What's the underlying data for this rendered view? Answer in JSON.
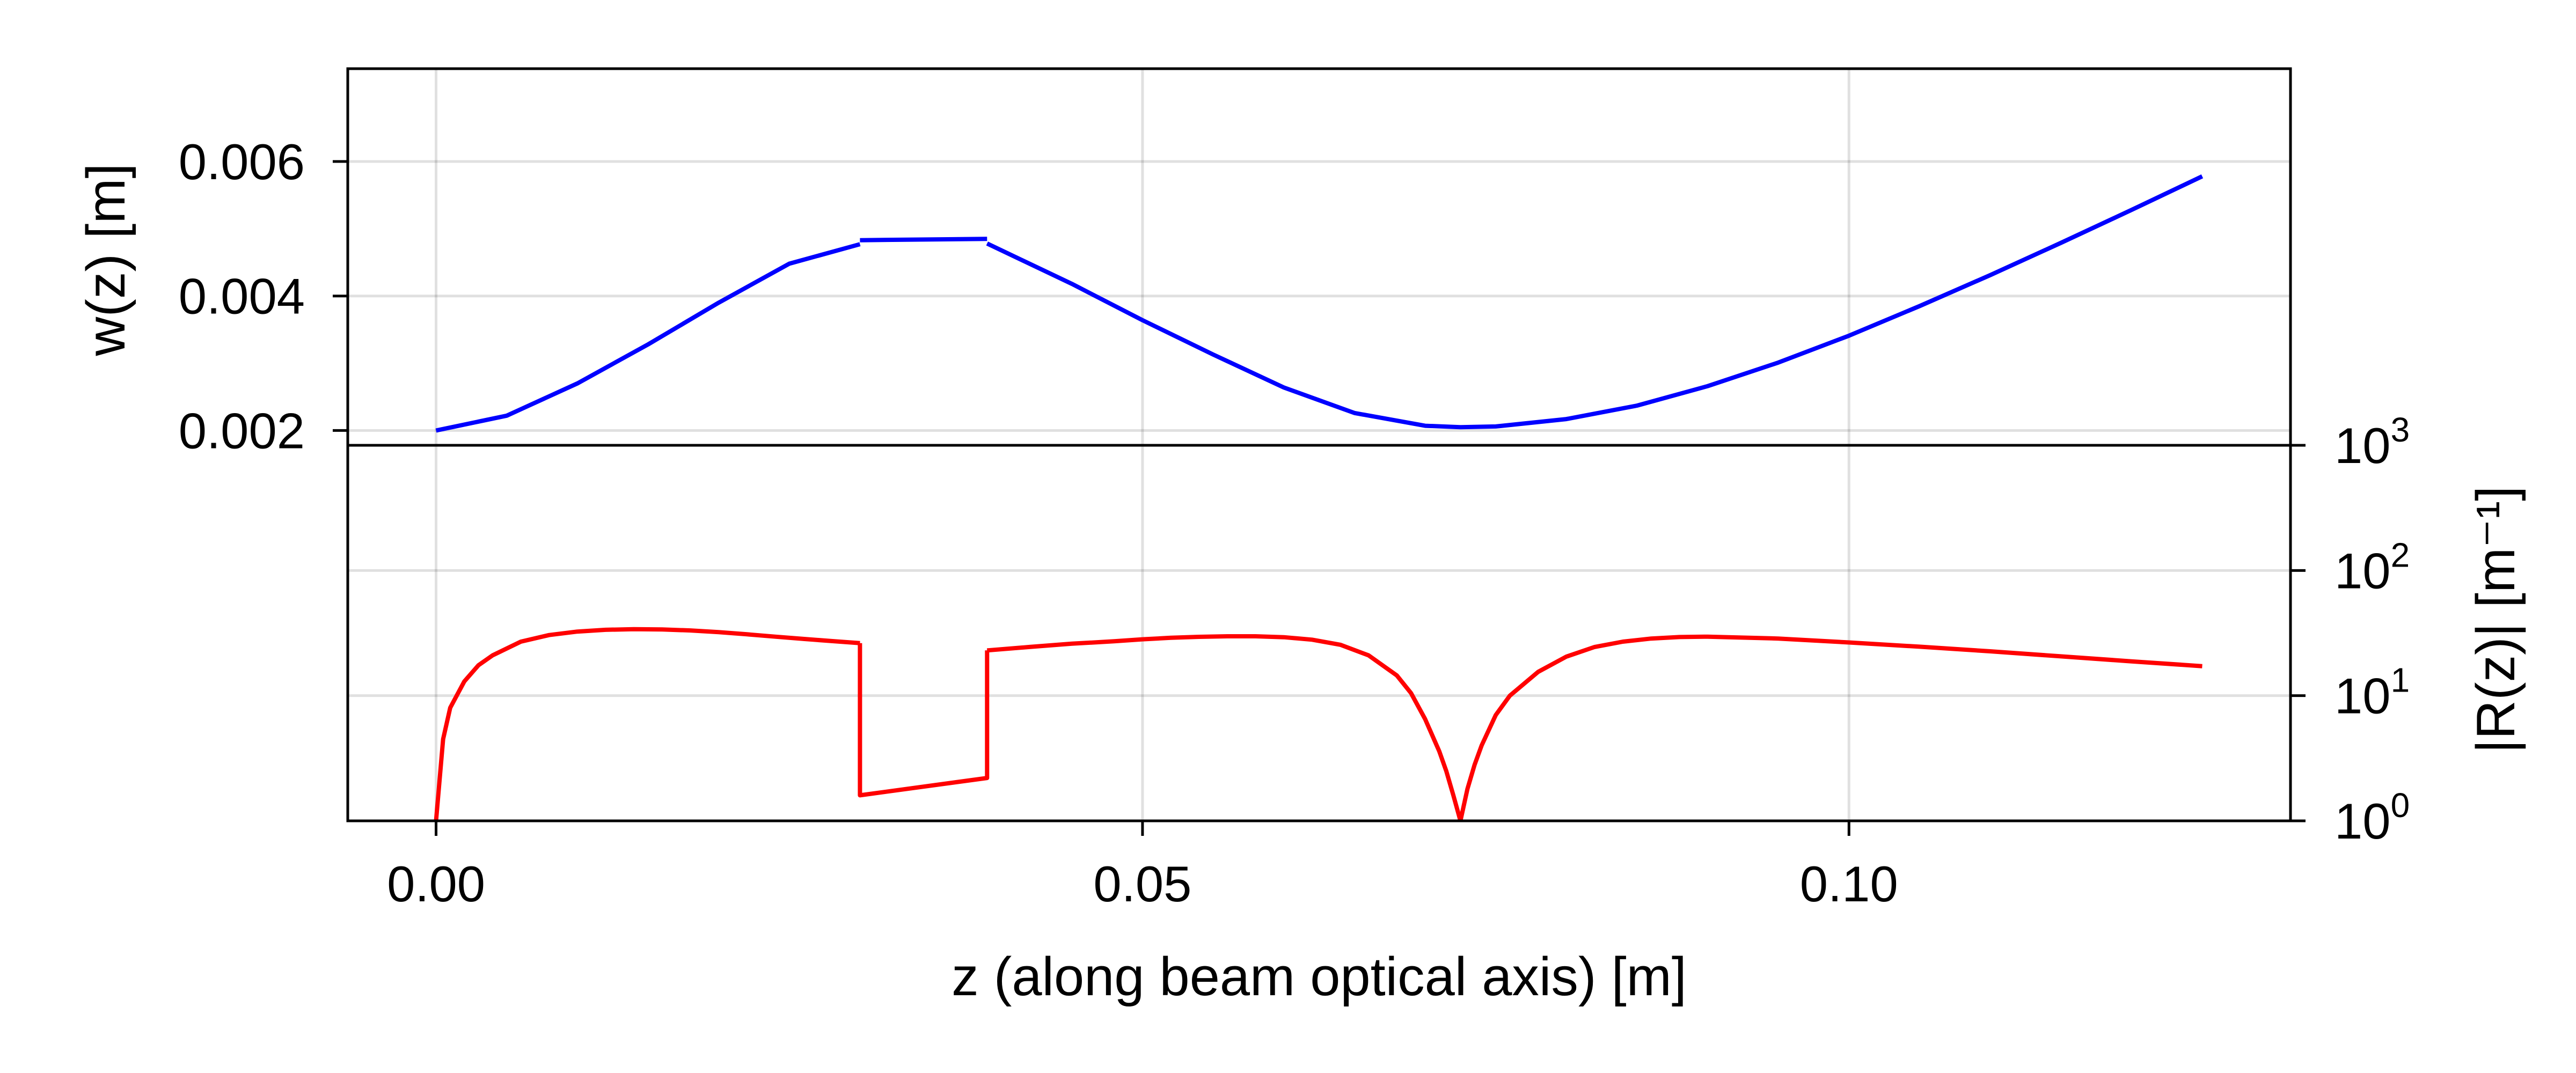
{
  "chart_data": [
    {
      "type": "line",
      "panel": "top",
      "title": "",
      "xlabel": "",
      "ylabel": "w(z) [m]",
      "xlim": [
        -0.00625,
        0.13125
      ],
      "ylim": [
        0.00178,
        0.00738
      ],
      "xticks": [
        0.0,
        0.05,
        0.1
      ],
      "yticks": [
        0.002,
        0.004,
        0.006
      ],
      "ytick_labels": [
        "0.002",
        "0.004",
        "0.006"
      ],
      "y_axis_side": "left",
      "grid": true,
      "legend": "none",
      "series": [
        {
          "color": "#0000ff",
          "segments": [
            {
              "x": [
                0.0,
                0.005,
                0.01,
                0.015,
                0.02,
                0.025,
                0.03
              ],
              "y": [
                0.002,
                0.00222,
                0.0027,
                0.00328,
                0.0039,
                0.00448,
                0.00477
              ]
            },
            {
              "x": [
                0.03,
                0.039
              ],
              "y": [
                0.00483,
                0.00485
              ]
            },
            {
              "x": [
                0.039,
                0.045,
                0.05,
                0.055,
                0.06,
                0.065,
                0.07,
                0.0725,
                0.075,
                0.08,
                0.085,
                0.09,
                0.095,
                0.1,
                0.105,
                0.11,
                0.115,
                0.12,
                0.125
              ],
              "y": [
                0.00478,
                0.00418,
                0.00364,
                0.00313,
                0.00264,
                0.00226,
                0.00207,
                0.00205,
                0.00206,
                0.00217,
                0.00237,
                0.00266,
                0.00301,
                0.00341,
                0.00385,
                0.00431,
                0.00479,
                0.00528,
                0.00578
              ]
            }
          ]
        }
      ]
    },
    {
      "type": "line",
      "panel": "bottom",
      "title": "",
      "xlabel": "z (along beam optical axis) [m]",
      "ylabel": "|R(z)| [m⁻¹]",
      "xlim": [
        -0.00625,
        0.13125
      ],
      "ylim": [
        1,
        1000
      ],
      "yscale": "log",
      "xticks": [
        0.0,
        0.05,
        0.1
      ],
      "xtick_labels": [
        "0.00",
        "0.05",
        "0.10"
      ],
      "yticks": [
        1,
        10,
        100,
        1000
      ],
      "ytick_labels": [
        {
          "base": "10",
          "exp": "0"
        },
        {
          "base": "10",
          "exp": "1"
        },
        {
          "base": "10",
          "exp": "2"
        },
        {
          "base": "10",
          "exp": "3"
        }
      ],
      "y_axis_side": "right",
      "grid": true,
      "legend": "none",
      "series": [
        {
          "color": "#ff0000",
          "segments": [
            {
              "x": [
                0.0,
                0.0005,
                0.001,
                0.002,
                0.003,
                0.004,
                0.006,
                0.008,
                0.01,
                0.012,
                0.014,
                0.016,
                0.018,
                0.02,
                0.022,
                0.024,
                0.026,
                0.028,
                0.03
              ],
              "y": [
                1.0,
                4.5,
                8.0,
                13.0,
                17.5,
                21.0,
                27.0,
                30.5,
                32.5,
                33.6,
                34.0,
                33.8,
                33.2,
                32.2,
                30.9,
                29.6,
                28.4,
                27.3,
                26.3
              ]
            },
            {
              "x": [
                0.03,
                0.03,
                0.039,
                0.039
              ],
              "y": [
                26.3,
                1.6,
                2.2,
                23.0
              ]
            },
            {
              "x": [
                0.039,
                0.042,
                0.045,
                0.048,
                0.05,
                0.052,
                0.054,
                0.056,
                0.058,
                0.06,
                0.062,
                0.064,
                0.066,
                0.068,
                0.069,
                0.07,
                0.071,
                0.0715,
                0.072,
                0.0725
              ],
              "y": [
                23.0,
                24.5,
                26.0,
                27.2,
                28.2,
                29.0,
                29.5,
                29.8,
                29.8,
                29.3,
                28.0,
                25.5,
                21.0,
                14.5,
                10.5,
                6.5,
                3.6,
                2.5,
                1.6,
                1.0
              ]
            },
            {
              "x": [
                0.0725,
                0.073,
                0.0735,
                0.074,
                0.075,
                0.076,
                0.078,
                0.08,
                0.082,
                0.084,
                0.086,
                0.088,
                0.09,
                0.095,
                0.1,
                0.105,
                0.11,
                0.115,
                0.12,
                0.125
              ],
              "y": [
                1.0,
                1.8,
                2.8,
                4.0,
                7.0,
                10.0,
                15.5,
                20.5,
                24.5,
                27.0,
                28.6,
                29.4,
                29.6,
                28.6,
                26.6,
                24.6,
                22.6,
                20.6,
                18.8,
                17.2
              ]
            }
          ]
        }
      ]
    }
  ]
}
